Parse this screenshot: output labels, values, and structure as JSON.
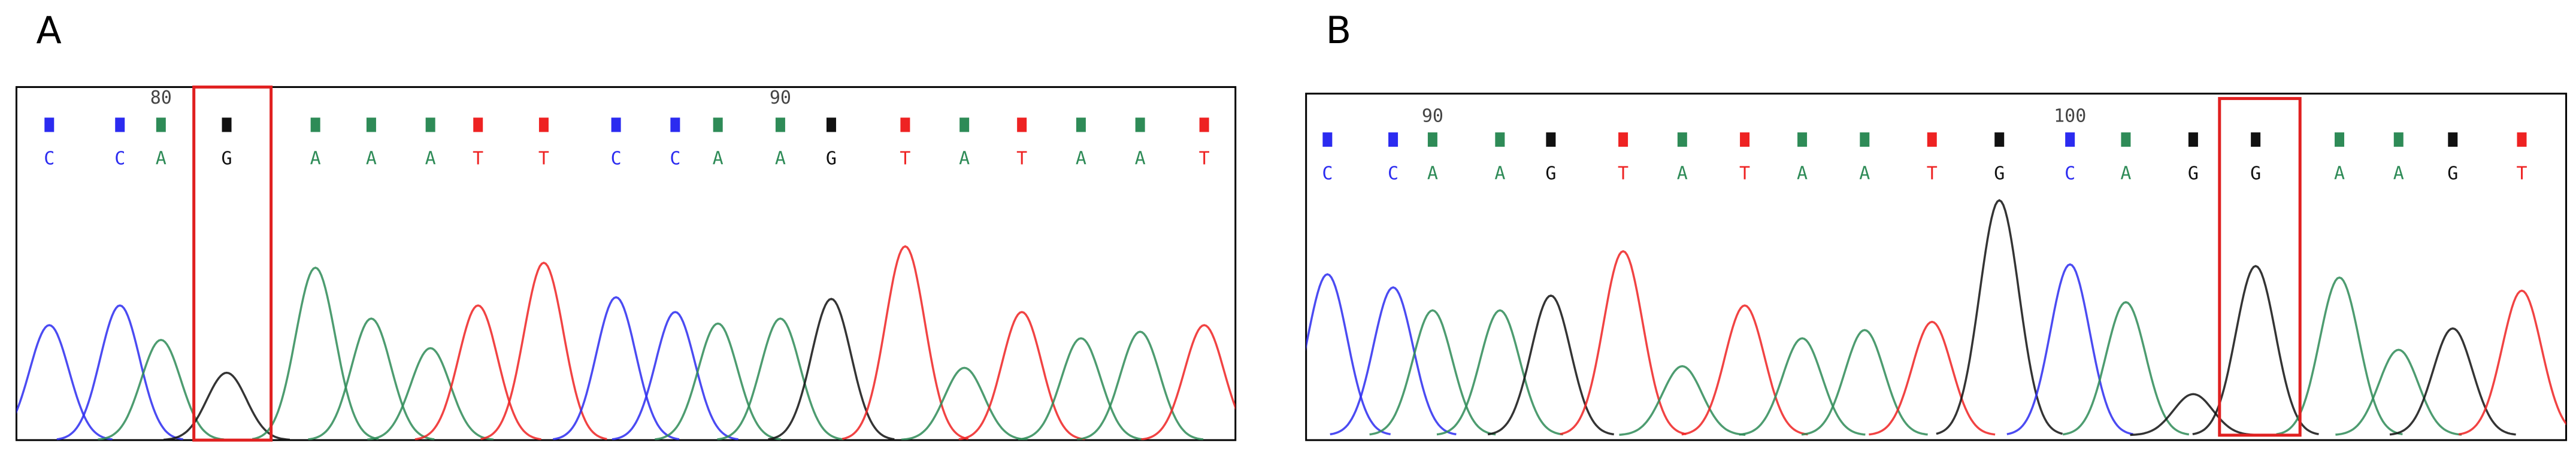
{
  "panels": [
    {
      "label": "A",
      "bases": [
        "C",
        "C",
        "A",
        "G",
        "A",
        "A",
        "A",
        "T",
        "T",
        "C",
        "C",
        "A",
        "A",
        "G",
        "T",
        "A",
        "T",
        "A",
        "A",
        "T"
      ],
      "positions": [
        80,
        90
      ]
    },
    {
      "label": "B",
      "bases": [
        "C",
        "C",
        "A",
        "A",
        "G",
        "T",
        "A",
        "T",
        "A",
        "A",
        "T",
        "G",
        "C",
        "A",
        "G",
        "G",
        "A",
        "A",
        "G",
        "T"
      ],
      "positions": [
        90,
        100
      ]
    }
  ]
}
